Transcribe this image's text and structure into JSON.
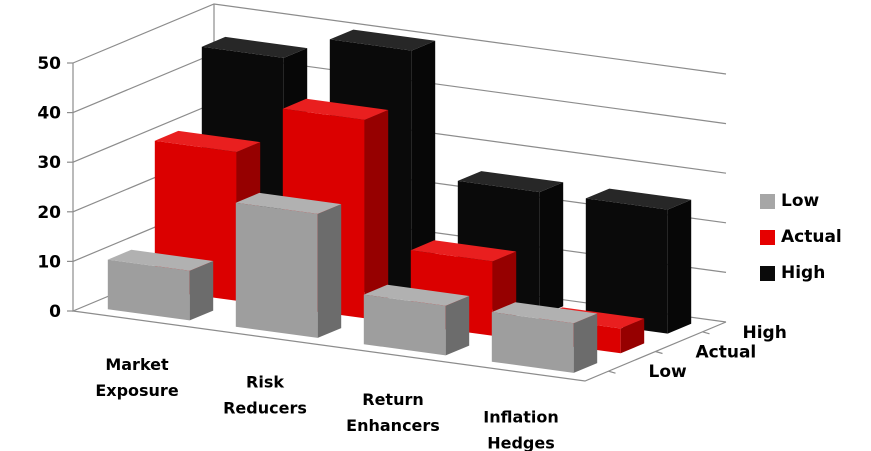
{
  "chart_data": {
    "type": "bar",
    "categories": [
      "Market Exposure",
      "Risk Reducers",
      "Return Enhancers",
      "Inflation Hedges"
    ],
    "category_lines": [
      [
        "Market",
        "Exposure"
      ],
      [
        "Risk",
        "Reducers"
      ],
      [
        "Return",
        "Enhancers"
      ],
      [
        "Inflation",
        "Hedges"
      ]
    ],
    "series": [
      {
        "name": "Low",
        "color": "#a6a6a6",
        "values": [
          10,
          25,
          10,
          10
        ]
      },
      {
        "name": "Actual",
        "color": "#e60000",
        "values": [
          30,
          40,
          15,
          5
        ]
      },
      {
        "name": "High",
        "color": "#0a0a0a",
        "values": [
          45,
          50,
          25,
          25
        ]
      }
    ],
    "depth_labels": [
      "Low",
      "Actual",
      "High"
    ],
    "ylim": [
      0,
      50
    ],
    "yticks": [
      "0",
      "10",
      "20",
      "30",
      "40",
      "50"
    ],
    "grid": true,
    "legend_position": "right",
    "title": "",
    "xlabel": "",
    "ylabel": ""
  }
}
